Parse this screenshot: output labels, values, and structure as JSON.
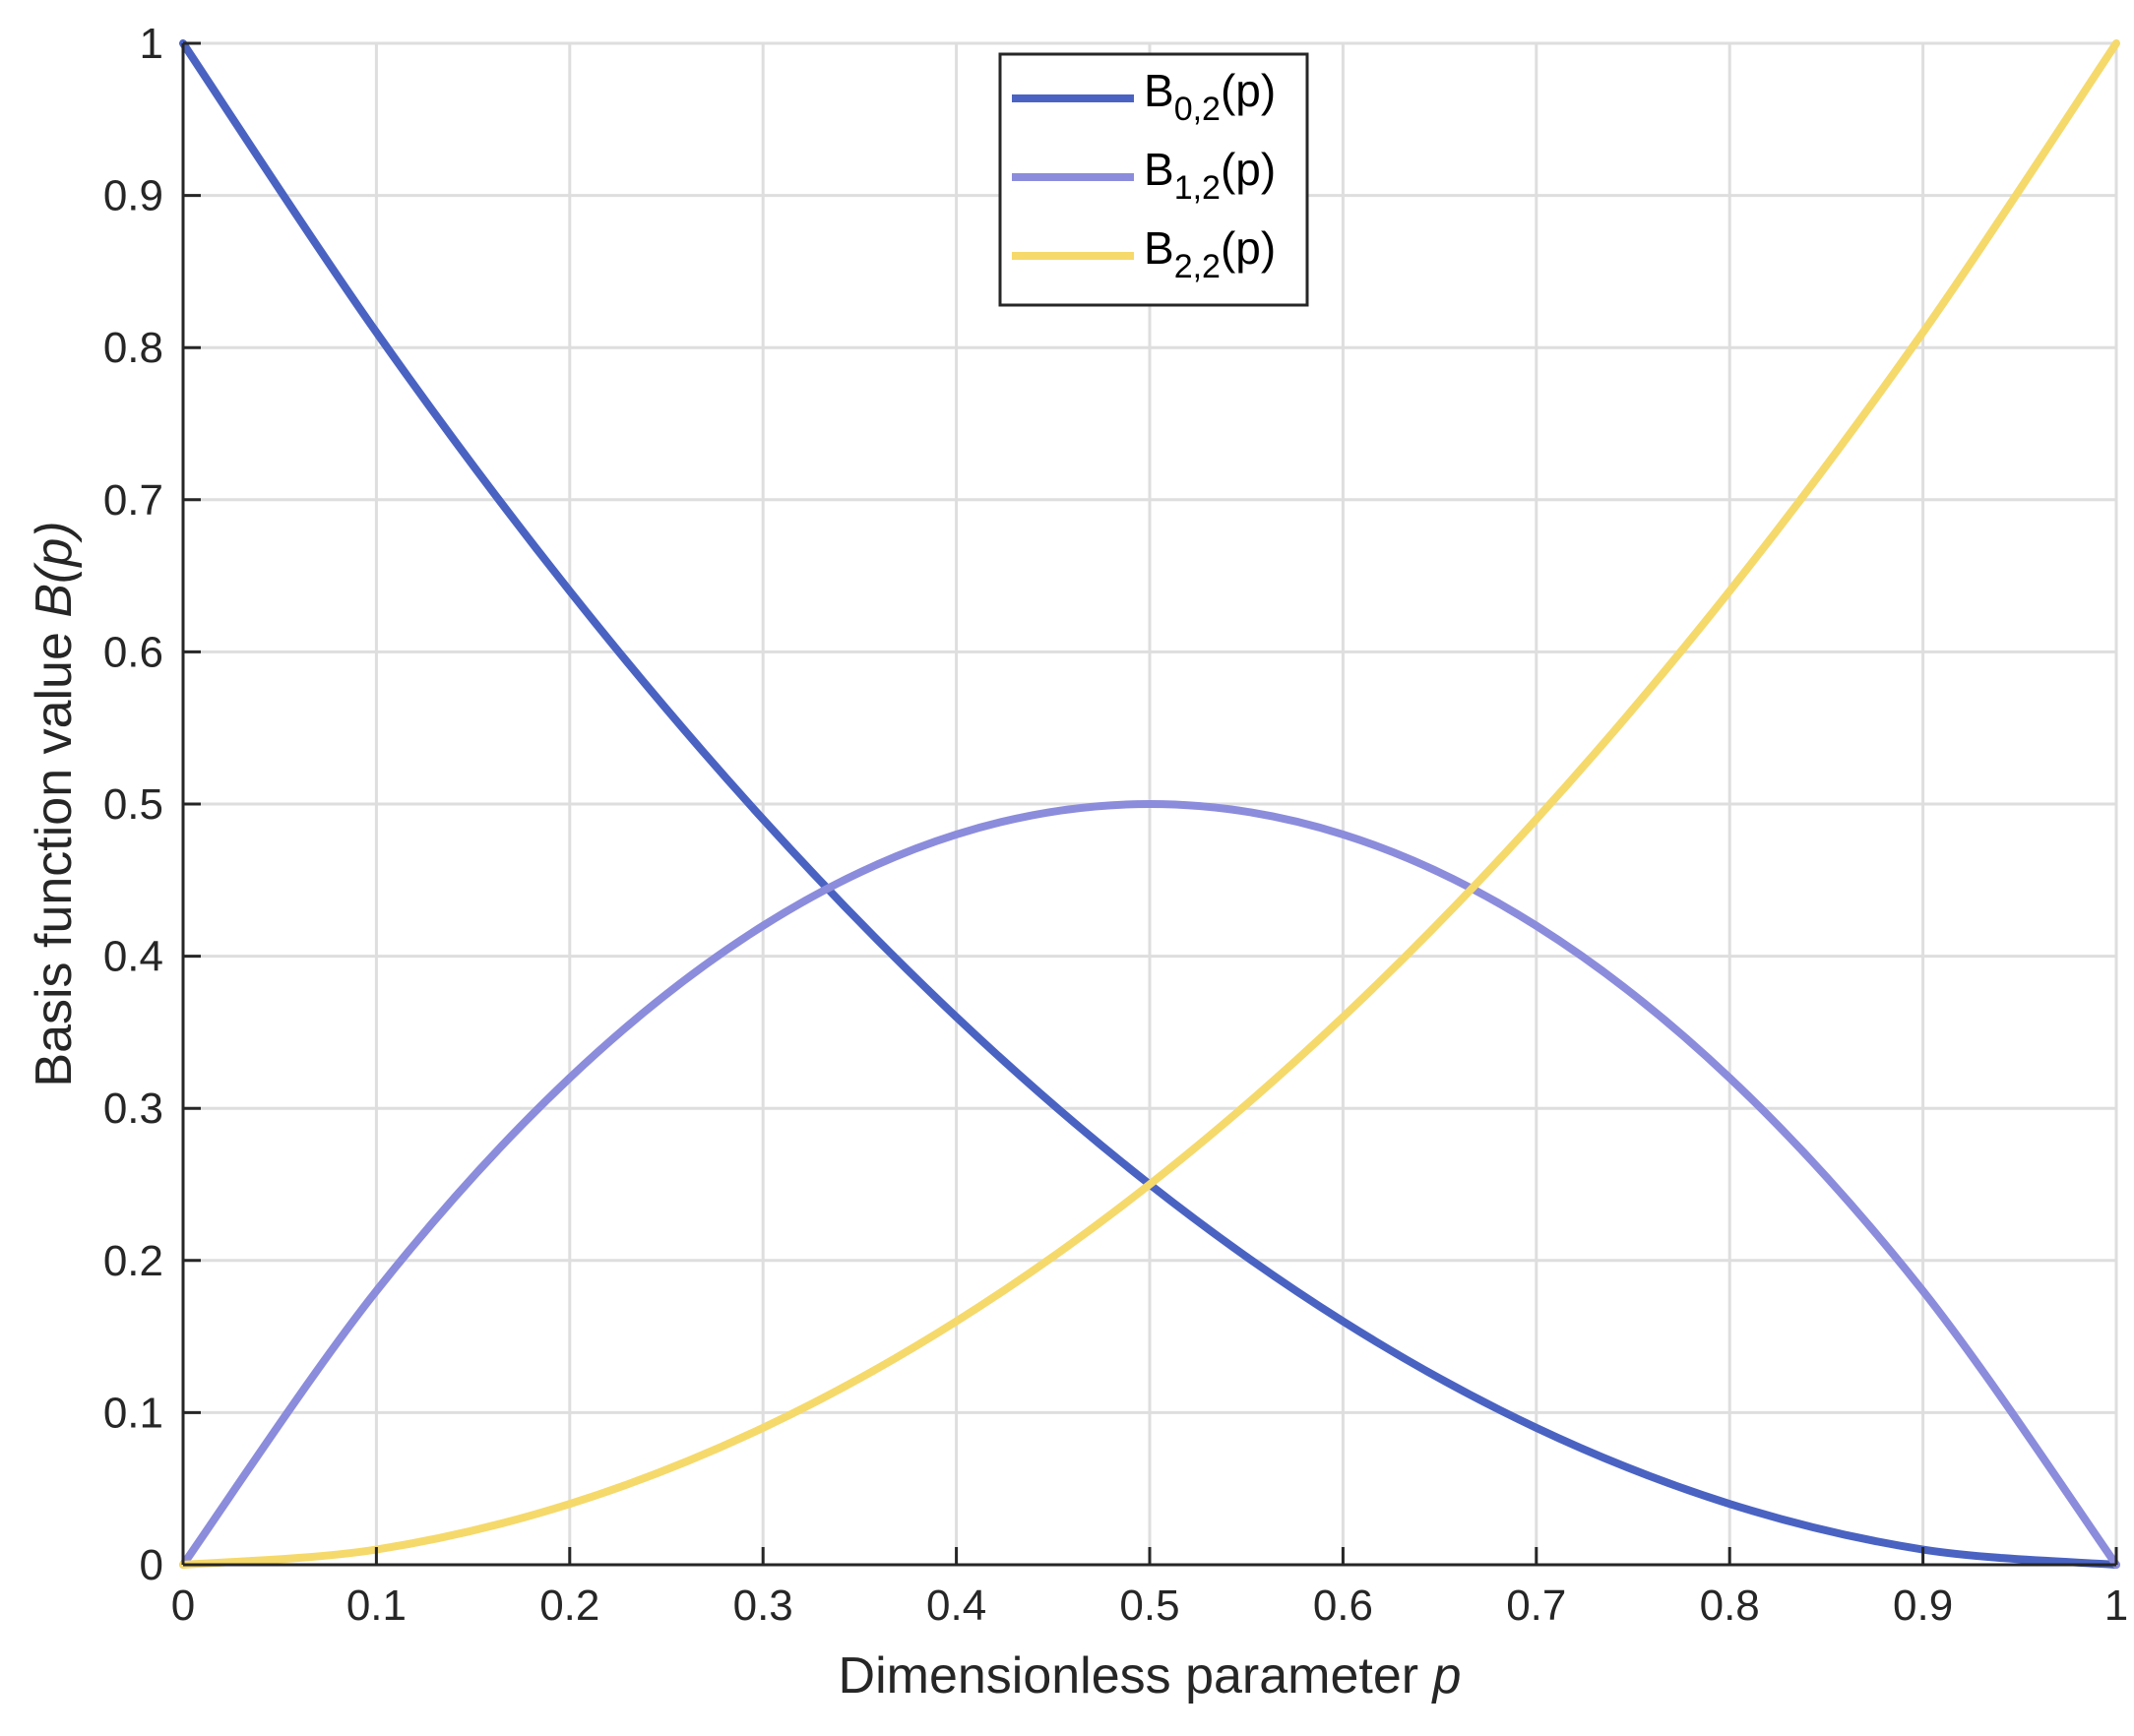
{
  "chart_data": {
    "type": "line",
    "title": "",
    "xlabel": {
      "text": "Dimensionless parameter ",
      "italic": "p"
    },
    "ylabel": {
      "text": "Basis function value ",
      "italic": "B(p)"
    },
    "xlim": [
      0,
      1
    ],
    "ylim": [
      0,
      1
    ],
    "x_ticks": [
      "0",
      "0.1",
      "0.2",
      "0.3",
      "0.4",
      "0.5",
      "0.6",
      "0.7",
      "0.8",
      "0.9",
      "1"
    ],
    "y_ticks": [
      "0",
      "0.1",
      "0.2",
      "0.3",
      "0.4",
      "0.5",
      "0.6",
      "0.7",
      "0.8",
      "0.9",
      "1"
    ],
    "grid": true,
    "legend_position": "top-center",
    "x": [
      0,
      0.1,
      0.2,
      0.3,
      0.4,
      0.5,
      0.6,
      0.7,
      0.8,
      0.9,
      1
    ],
    "series": [
      {
        "name": "B0,2(p)",
        "legend": {
          "base": "B",
          "sub": "0,2",
          "suffix": "(p)"
        },
        "color": "#4a63c2",
        "values": [
          1,
          0.81,
          0.64,
          0.49,
          0.36,
          0.25,
          0.16,
          0.09,
          0.04,
          0.01,
          0
        ]
      },
      {
        "name": "B1,2(p)",
        "legend": {
          "base": "B",
          "sub": "1,2",
          "suffix": "(p)"
        },
        "color": "#8c8cdc",
        "values": [
          0,
          0.18,
          0.32,
          0.42,
          0.48,
          0.5,
          0.48,
          0.42,
          0.32,
          0.18,
          0
        ]
      },
      {
        "name": "B2,2(p)",
        "legend": {
          "base": "B",
          "sub": "2,2",
          "suffix": "(p)"
        },
        "color": "#f5d96b",
        "values": [
          0,
          0.01,
          0.04,
          0.09,
          0.16,
          0.25,
          0.36,
          0.49,
          0.64,
          0.81,
          1
        ]
      }
    ]
  }
}
